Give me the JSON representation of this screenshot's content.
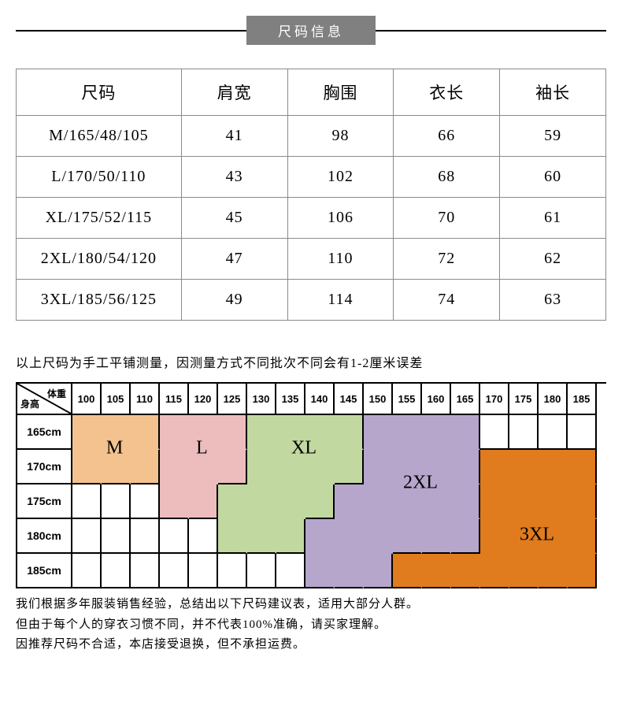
{
  "banner": {
    "title": "尺码信息"
  },
  "sizeTable": {
    "columns": [
      "尺码",
      "肩宽",
      "胸围",
      "衣长",
      "袖长"
    ],
    "colWidths": [
      "28%",
      "18%",
      "18%",
      "18%",
      "18%"
    ],
    "rows": [
      [
        "M/165/48/105",
        "41",
        "98",
        "66",
        "59"
      ],
      [
        "L/170/50/110",
        "43",
        "102",
        "68",
        "60"
      ],
      [
        "XL/175/52/115",
        "45",
        "106",
        "70",
        "61"
      ],
      [
        "2XL/180/54/120",
        "47",
        "110",
        "72",
        "62"
      ],
      [
        "3XL/185/56/125",
        "49",
        "114",
        "74",
        "63"
      ]
    ]
  },
  "note1": "以上尺码为手工平铺测量，因测量方式不同批次不同会有1-2厘米误差",
  "reco": {
    "cornerTop": "体重",
    "cornerBottom": "身高",
    "weights": [
      "100",
      "105",
      "110",
      "115",
      "120",
      "125",
      "130",
      "135",
      "140",
      "145",
      "150",
      "155",
      "160",
      "165",
      "170",
      "175",
      "180",
      "185"
    ],
    "heights": [
      "165cm",
      "170cm",
      "175cm",
      "180cm",
      "185cm"
    ],
    "grid": {
      "colWidthsPx": [
        70,
        37,
        37,
        37,
        37,
        37,
        37,
        37,
        37,
        37,
        37,
        37,
        37,
        37,
        37,
        37,
        37,
        37,
        37
      ],
      "headerRowHeightPx": 40,
      "rowHeightPx": 44
    },
    "colors": {
      "M": "#f3c28f",
      "L": "#edbcbd",
      "XL": "#c1d8a0",
      "2XL": "#b6a6cc",
      "3XL": "#e07b1e"
    },
    "cells": [
      {
        "r": 0,
        "c": 1,
        "k": "M"
      },
      {
        "r": 0,
        "c": 2,
        "k": "M"
      },
      {
        "r": 0,
        "c": 3,
        "k": "M"
      },
      {
        "r": 0,
        "c": 4,
        "k": "L"
      },
      {
        "r": 0,
        "c": 5,
        "k": "L"
      },
      {
        "r": 0,
        "c": 6,
        "k": "L"
      },
      {
        "r": 0,
        "c": 7,
        "k": "XL"
      },
      {
        "r": 0,
        "c": 8,
        "k": "XL"
      },
      {
        "r": 0,
        "c": 9,
        "k": "XL"
      },
      {
        "r": 0,
        "c": 10,
        "k": "XL"
      },
      {
        "r": 0,
        "c": 11,
        "k": "2XL"
      },
      {
        "r": 0,
        "c": 12,
        "k": "2XL"
      },
      {
        "r": 0,
        "c": 13,
        "k": "2XL"
      },
      {
        "r": 0,
        "c": 14,
        "k": "2XL"
      },
      {
        "r": 1,
        "c": 1,
        "k": "M"
      },
      {
        "r": 1,
        "c": 2,
        "k": "M"
      },
      {
        "r": 1,
        "c": 3,
        "k": "M"
      },
      {
        "r": 1,
        "c": 4,
        "k": "L"
      },
      {
        "r": 1,
        "c": 5,
        "k": "L"
      },
      {
        "r": 1,
        "c": 6,
        "k": "L"
      },
      {
        "r": 1,
        "c": 7,
        "k": "XL"
      },
      {
        "r": 1,
        "c": 8,
        "k": "XL"
      },
      {
        "r": 1,
        "c": 9,
        "k": "XL"
      },
      {
        "r": 1,
        "c": 10,
        "k": "XL"
      },
      {
        "r": 1,
        "c": 11,
        "k": "2XL"
      },
      {
        "r": 1,
        "c": 12,
        "k": "2XL"
      },
      {
        "r": 1,
        "c": 13,
        "k": "2XL"
      },
      {
        "r": 1,
        "c": 14,
        "k": "2XL"
      },
      {
        "r": 1,
        "c": 15,
        "k": "3XL"
      },
      {
        "r": 1,
        "c": 16,
        "k": "3XL"
      },
      {
        "r": 1,
        "c": 17,
        "k": "3XL"
      },
      {
        "r": 1,
        "c": 18,
        "k": "3XL"
      },
      {
        "r": 2,
        "c": 4,
        "k": "L"
      },
      {
        "r": 2,
        "c": 5,
        "k": "L"
      },
      {
        "r": 2,
        "c": 6,
        "k": "XL"
      },
      {
        "r": 2,
        "c": 7,
        "k": "XL"
      },
      {
        "r": 2,
        "c": 8,
        "k": "XL"
      },
      {
        "r": 2,
        "c": 9,
        "k": "XL"
      },
      {
        "r": 2,
        "c": 10,
        "k": "2XL"
      },
      {
        "r": 2,
        "c": 11,
        "k": "2XL"
      },
      {
        "r": 2,
        "c": 12,
        "k": "2XL"
      },
      {
        "r": 2,
        "c": 13,
        "k": "2XL"
      },
      {
        "r": 2,
        "c": 14,
        "k": "2XL"
      },
      {
        "r": 2,
        "c": 15,
        "k": "3XL"
      },
      {
        "r": 2,
        "c": 16,
        "k": "3XL"
      },
      {
        "r": 2,
        "c": 17,
        "k": "3XL"
      },
      {
        "r": 2,
        "c": 18,
        "k": "3XL"
      },
      {
        "r": 3,
        "c": 6,
        "k": "XL"
      },
      {
        "r": 3,
        "c": 7,
        "k": "XL"
      },
      {
        "r": 3,
        "c": 8,
        "k": "XL"
      },
      {
        "r": 3,
        "c": 9,
        "k": "2XL"
      },
      {
        "r": 3,
        "c": 10,
        "k": "2XL"
      },
      {
        "r": 3,
        "c": 11,
        "k": "2XL"
      },
      {
        "r": 3,
        "c": 12,
        "k": "2XL"
      },
      {
        "r": 3,
        "c": 13,
        "k": "2XL"
      },
      {
        "r": 3,
        "c": 14,
        "k": "2XL"
      },
      {
        "r": 3,
        "c": 15,
        "k": "3XL"
      },
      {
        "r": 3,
        "c": 16,
        "k": "3XL"
      },
      {
        "r": 3,
        "c": 17,
        "k": "3XL"
      },
      {
        "r": 3,
        "c": 18,
        "k": "3XL"
      },
      {
        "r": 4,
        "c": 9,
        "k": "2XL"
      },
      {
        "r": 4,
        "c": 10,
        "k": "2XL"
      },
      {
        "r": 4,
        "c": 11,
        "k": "2XL"
      },
      {
        "r": 4,
        "c": 12,
        "k": "3XL"
      },
      {
        "r": 4,
        "c": 13,
        "k": "3XL"
      },
      {
        "r": 4,
        "c": 14,
        "k": "3XL"
      },
      {
        "r": 4,
        "c": 15,
        "k": "3XL"
      },
      {
        "r": 4,
        "c": 16,
        "k": "3XL"
      },
      {
        "r": 4,
        "c": 17,
        "k": "3XL"
      },
      {
        "r": 4,
        "c": 18,
        "k": "3XL"
      }
    ],
    "labels": [
      {
        "text": "M",
        "col": 2.5,
        "row": 1
      },
      {
        "text": "L",
        "col": 5.5,
        "row": 1
      },
      {
        "text": "XL",
        "col": 9,
        "row": 1
      },
      {
        "text": "2XL",
        "col": 13,
        "row": 2
      },
      {
        "text": "3XL",
        "col": 17,
        "row": 3.5
      }
    ]
  },
  "notes2": [
    "我们根据多年服装销售经验，总结出以下尺码建议表，适用大部分人群。",
    "但由于每个人的穿衣习惯不同，并不代表100%准确，请买家理解。",
    "因推荐尺码不合适，本店接受退换，但不承担运费。"
  ]
}
